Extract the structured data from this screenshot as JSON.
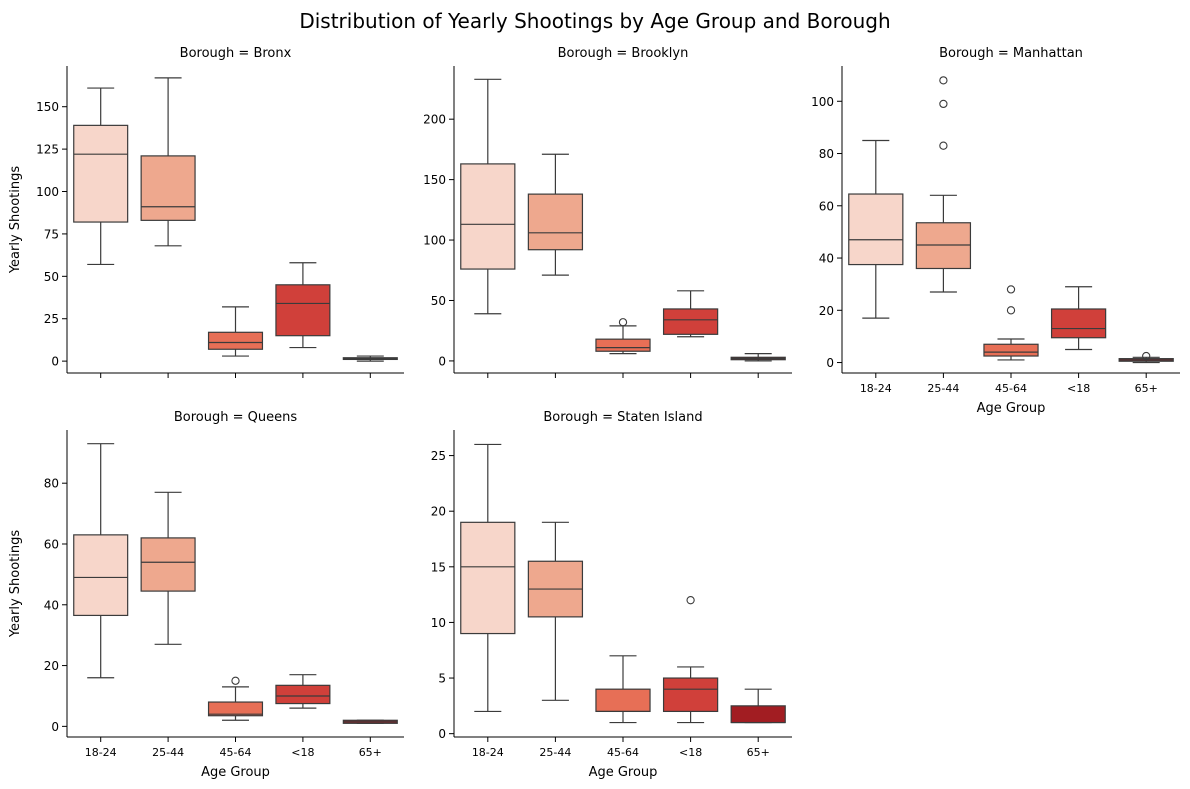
{
  "figure": {
    "title": "Distribution of Yearly Shootings by Age Group and Borough"
  },
  "palette": {
    "18-24": "#f7d6ca",
    "25-44": "#eea88e",
    "45-64": "#e76f56",
    "<18": "#d0403a",
    "65+": "#a21d22",
    "edge": "#3b3b3b"
  },
  "chart_data": [
    {
      "type": "box",
      "title": "Borough = Bronx",
      "xlabel": "",
      "ylabel": "Yearly Shootings",
      "categories": [
        "18-24",
        "25-44",
        "45-64",
        "<18",
        "65+"
      ],
      "ylim": [
        -7,
        174
      ],
      "yticks": [
        0,
        25,
        50,
        75,
        100,
        125,
        150
      ],
      "show_xtick_labels": false,
      "boxes": [
        {
          "category": "18-24",
          "whislo": 57,
          "q1": 82,
          "med": 122,
          "q3": 139,
          "whishi": 161,
          "fliers": []
        },
        {
          "category": "25-44",
          "whislo": 68,
          "q1": 83,
          "med": 91,
          "q3": 121,
          "whishi": 167,
          "fliers": []
        },
        {
          "category": "45-64",
          "whislo": 3,
          "q1": 7,
          "med": 11,
          "q3": 17,
          "whishi": 32,
          "fliers": []
        },
        {
          "category": "<18",
          "whislo": 8,
          "q1": 15,
          "med": 34,
          "q3": 45,
          "whishi": 58,
          "fliers": []
        },
        {
          "category": "65+",
          "whislo": 0,
          "q1": 1,
          "med": 1.5,
          "q3": 2,
          "whishi": 3,
          "fliers": []
        }
      ]
    },
    {
      "type": "box",
      "title": "Borough = Brooklyn",
      "xlabel": "",
      "ylabel": "",
      "categories": [
        "18-24",
        "25-44",
        "45-64",
        "<18",
        "65+"
      ],
      "ylim": [
        -10,
        244
      ],
      "yticks": [
        0,
        50,
        100,
        150,
        200
      ],
      "show_xtick_labels": false,
      "boxes": [
        {
          "category": "18-24",
          "whislo": 39,
          "q1": 76,
          "med": 113,
          "q3": 163,
          "whishi": 233,
          "fliers": []
        },
        {
          "category": "25-44",
          "whislo": 71,
          "q1": 92,
          "med": 106,
          "q3": 138,
          "whishi": 171,
          "fliers": []
        },
        {
          "category": "45-64",
          "whislo": 6,
          "q1": 8,
          "med": 11,
          "q3": 18,
          "whishi": 29,
          "fliers": [
            32
          ]
        },
        {
          "category": "<18",
          "whislo": 20,
          "q1": 22,
          "med": 34,
          "q3": 43,
          "whishi": 58,
          "fliers": []
        },
        {
          "category": "65+",
          "whislo": 0,
          "q1": 1,
          "med": 2,
          "q3": 3,
          "whishi": 6,
          "fliers": []
        }
      ]
    },
    {
      "type": "box",
      "title": "Borough = Manhattan",
      "xlabel": "Age Group",
      "ylabel": "",
      "categories": [
        "18-24",
        "25-44",
        "45-64",
        "<18",
        "65+"
      ],
      "ylim": [
        -4,
        113.5
      ],
      "yticks": [
        0,
        20,
        40,
        60,
        80,
        100
      ],
      "show_xtick_labels": true,
      "boxes": [
        {
          "category": "18-24",
          "whislo": 17,
          "q1": 37.5,
          "med": 47,
          "q3": 64.5,
          "whishi": 85,
          "fliers": []
        },
        {
          "category": "25-44",
          "whislo": 27,
          "q1": 36,
          "med": 45,
          "q3": 53.5,
          "whishi": 64,
          "fliers": [
            83,
            99,
            108
          ]
        },
        {
          "category": "45-64",
          "whislo": 1,
          "q1": 2.5,
          "med": 4,
          "q3": 7,
          "whishi": 9,
          "fliers": [
            20,
            28
          ]
        },
        {
          "category": "<18",
          "whislo": 5,
          "q1": 9.5,
          "med": 13,
          "q3": 20.5,
          "whishi": 29,
          "fliers": []
        },
        {
          "category": "65+",
          "whislo": 0,
          "q1": 0.5,
          "med": 1,
          "q3": 1.5,
          "whishi": 2,
          "fliers": [
            2.5
          ]
        }
      ]
    },
    {
      "type": "box",
      "title": "Borough = Queens",
      "xlabel": "Age Group",
      "ylabel": "Yearly Shootings",
      "categories": [
        "18-24",
        "25-44",
        "45-64",
        "<18",
        "65+"
      ],
      "ylim": [
        -3.5,
        97.5
      ],
      "yticks": [
        0,
        20,
        40,
        60,
        80
      ],
      "show_xtick_labels": true,
      "boxes": [
        {
          "category": "18-24",
          "whislo": 16,
          "q1": 36.5,
          "med": 49,
          "q3": 63,
          "whishi": 93,
          "fliers": []
        },
        {
          "category": "25-44",
          "whislo": 27,
          "q1": 44.5,
          "med": 54,
          "q3": 62,
          "whishi": 77,
          "fliers": []
        },
        {
          "category": "45-64",
          "whislo": 2,
          "q1": 3.5,
          "med": 4,
          "q3": 8,
          "whishi": 13,
          "fliers": [
            15
          ]
        },
        {
          "category": "<18",
          "whislo": 6,
          "q1": 7.5,
          "med": 10,
          "q3": 13.5,
          "whishi": 17,
          "fliers": []
        },
        {
          "category": "65+",
          "whislo": 1,
          "q1": 1,
          "med": 1.5,
          "q3": 2,
          "whishi": 2,
          "fliers": []
        }
      ]
    },
    {
      "type": "box",
      "title": "Borough = Staten Island",
      "xlabel": "Age Group",
      "ylabel": "",
      "categories": [
        "18-24",
        "25-44",
        "45-64",
        "<18",
        "65+"
      ],
      "ylim": [
        -0.3,
        27.3
      ],
      "yticks": [
        0,
        5,
        10,
        15,
        20,
        25
      ],
      "show_xtick_labels": true,
      "boxes": [
        {
          "category": "18-24",
          "whislo": 2,
          "q1": 9,
          "med": 15,
          "q3": 19,
          "whishi": 26,
          "fliers": []
        },
        {
          "category": "25-44",
          "whislo": 3,
          "q1": 10.5,
          "med": 13,
          "q3": 15.5,
          "whishi": 19,
          "fliers": []
        },
        {
          "category": "45-64",
          "whislo": 1,
          "q1": 2,
          "med": 2,
          "q3": 4,
          "whishi": 7,
          "fliers": []
        },
        {
          "category": "<18",
          "whislo": 1,
          "q1": 2,
          "med": 4,
          "q3": 5,
          "whishi": 6,
          "fliers": [
            12
          ]
        },
        {
          "category": "65+",
          "whislo": 1,
          "q1": 1,
          "med": 1,
          "q3": 2.5,
          "whishi": 4,
          "fliers": []
        }
      ]
    }
  ]
}
